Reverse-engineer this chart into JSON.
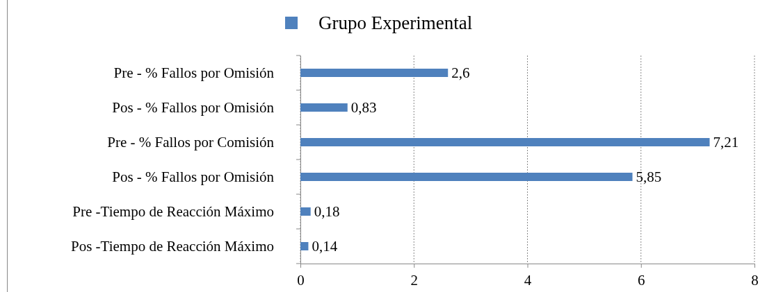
{
  "chart_data": {
    "type": "bar",
    "orientation": "horizontal",
    "categories": [
      "Pre - % Fallos por Omisión",
      "Pos - % Fallos por Omisión",
      "Pre - % Fallos por Comisión",
      "Pos - % Fallos por Omisión",
      "Pre -Tiempo de Reacción Máximo",
      "Pos -Tiempo de Reacción Máximo"
    ],
    "series": [
      {
        "name": "Grupo Experimental",
        "color": "#4f81bd",
        "values": [
          2.6,
          0.83,
          7.21,
          5.85,
          0.18,
          0.14
        ],
        "value_labels": [
          "2,6",
          "0,83",
          "7,21",
          "5,85",
          "0,18",
          "0,14"
        ]
      }
    ],
    "xlim": [
      0,
      8
    ],
    "xticks": [
      0,
      2,
      4,
      6,
      8
    ],
    "grid": "x",
    "legend": "top"
  }
}
